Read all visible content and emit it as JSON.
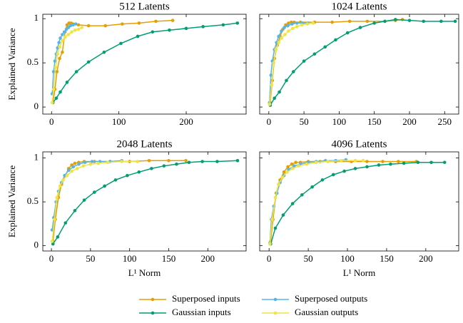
{
  "chart_data": [
    {
      "type": "line",
      "title": "512 Latents",
      "ylabel": "Explained Variance",
      "xlim": [
        -13,
        289
      ],
      "ylim": [
        -0.08,
        1.05
      ],
      "xticks": [
        0,
        100,
        200
      ],
      "yticks": [
        0,
        0.5,
        1
      ],
      "show_ytick_labels": true,
      "grid": false,
      "legend": "bottom",
      "series": [
        {
          "name": "Superposed inputs",
          "color": "#E69F00",
          "x": [
            2,
            5,
            8,
            12,
            16,
            20,
            23,
            26,
            29,
            32,
            40,
            55,
            80,
            105,
            130,
            155,
            180
          ],
          "values": [
            0.05,
            0.2,
            0.4,
            0.55,
            0.62,
            0.85,
            0.93,
            0.95,
            0.95,
            0.94,
            0.93,
            0.92,
            0.92,
            0.94,
            0.95,
            0.97,
            0.98
          ]
        },
        {
          "name": "Gaussian inputs",
          "color": "#009E73",
          "x": [
            2,
            7,
            13,
            23,
            37,
            55,
            78,
            103,
            128,
            150,
            175,
            200,
            225,
            255,
            276
          ],
          "values": [
            0.05,
            0.1,
            0.17,
            0.28,
            0.4,
            0.51,
            0.62,
            0.72,
            0.8,
            0.85,
            0.87,
            0.89,
            0.91,
            0.93,
            0.95
          ]
        },
        {
          "name": "Superposed outputs",
          "color": "#56B4E9",
          "x": [
            1,
            3,
            5,
            7,
            9,
            11,
            13,
            16,
            19,
            22,
            25,
            28,
            32,
            36
          ],
          "values": [
            0.15,
            0.4,
            0.52,
            0.6,
            0.67,
            0.73,
            0.78,
            0.82,
            0.85,
            0.88,
            0.9,
            0.92,
            0.93,
            0.94
          ]
        },
        {
          "name": "Gaussian outputs",
          "color": "#F0E442",
          "x": [
            1,
            3,
            6,
            9,
            12,
            16,
            20,
            25,
            30,
            35,
            40,
            45
          ],
          "values": [
            0.05,
            0.2,
            0.45,
            0.6,
            0.68,
            0.75,
            0.79,
            0.82,
            0.85,
            0.87,
            0.88,
            0.9
          ]
        }
      ]
    },
    {
      "type": "line",
      "title": "1024 Latents",
      "xlim": [
        -13,
        270
      ],
      "ylim": [
        -0.08,
        1.05
      ],
      "xticks": [
        0,
        50,
        100,
        150,
        200,
        250
      ],
      "yticks": [
        0,
        0.5,
        1
      ],
      "show_ytick_labels": false,
      "grid": false,
      "series": [
        {
          "color": "#E69F00",
          "x": [
            2,
            5,
            8,
            12,
            16,
            20,
            24,
            28,
            32,
            36,
            45,
            65,
            90,
            115,
            140,
            165,
            180,
            190
          ],
          "values": [
            0.05,
            0.3,
            0.55,
            0.7,
            0.8,
            0.88,
            0.93,
            0.95,
            0.96,
            0.96,
            0.96,
            0.96,
            0.96,
            0.97,
            0.97,
            0.97,
            0.98,
            0.99
          ]
        },
        {
          "color": "#009E73",
          "x": [
            2,
            8,
            15,
            25,
            35,
            50,
            65,
            80,
            95,
            112,
            130,
            150,
            165,
            180,
            200,
            220,
            245,
            265
          ],
          "values": [
            0.02,
            0.1,
            0.17,
            0.3,
            0.4,
            0.52,
            0.6,
            0.68,
            0.76,
            0.84,
            0.9,
            0.95,
            0.97,
            0.99,
            0.98,
            0.97,
            0.97,
            0.97
          ]
        },
        {
          "color": "#56B4E9",
          "x": [
            1,
            3,
            5,
            8,
            11,
            14,
            18,
            22,
            27,
            33,
            40,
            48,
            56
          ],
          "values": [
            0.05,
            0.36,
            0.52,
            0.65,
            0.73,
            0.8,
            0.86,
            0.9,
            0.92,
            0.94,
            0.95,
            0.95,
            0.95
          ]
        },
        {
          "color": "#F0E442",
          "x": [
            1,
            4,
            7,
            10,
            14,
            18,
            23,
            28,
            34,
            40,
            47,
            55,
            63
          ],
          "values": [
            0.03,
            0.25,
            0.5,
            0.65,
            0.73,
            0.78,
            0.82,
            0.86,
            0.89,
            0.91,
            0.93,
            0.94,
            0.95
          ]
        }
      ]
    },
    {
      "type": "line",
      "title": "2048 Latents",
      "ylabel": "Explained Variance",
      "xlabel": "L¹ Norm",
      "xlim": [
        -11,
        249
      ],
      "ylim": [
        -0.06,
        1.07
      ],
      "xticks": [
        0,
        50,
        100,
        150,
        200
      ],
      "yticks": [
        0,
        0.5,
        1
      ],
      "show_ytick_labels": true,
      "grid": false,
      "series": [
        {
          "color": "#E69F00",
          "x": [
            2,
            5,
            9,
            13,
            18,
            22,
            26,
            30,
            35,
            42,
            55,
            75,
            100,
            125,
            150,
            172
          ],
          "values": [
            0.05,
            0.3,
            0.55,
            0.7,
            0.8,
            0.88,
            0.92,
            0.94,
            0.95,
            0.96,
            0.96,
            0.96,
            0.96,
            0.97,
            0.97,
            0.97
          ]
        },
        {
          "color": "#009E73",
          "x": [
            2,
            8,
            18,
            30,
            42,
            55,
            68,
            82,
            97,
            112,
            128,
            144,
            160,
            176,
            193,
            212,
            238
          ],
          "values": [
            0.02,
            0.1,
            0.26,
            0.4,
            0.52,
            0.61,
            0.68,
            0.75,
            0.8,
            0.84,
            0.88,
            0.91,
            0.93,
            0.95,
            0.96,
            0.96,
            0.97
          ]
        },
        {
          "color": "#56B4E9",
          "x": [
            1,
            3,
            6,
            9,
            13,
            17,
            22,
            28,
            35,
            43,
            52,
            62,
            75,
            90
          ],
          "values": [
            0.18,
            0.32,
            0.5,
            0.62,
            0.72,
            0.8,
            0.86,
            0.9,
            0.93,
            0.95,
            0.96,
            0.96,
            0.96,
            0.97
          ]
        },
        {
          "color": "#F0E442",
          "x": [
            1,
            4,
            7,
            11,
            15,
            20,
            26,
            33,
            41,
            50,
            60,
            72,
            90,
            110
          ],
          "values": [
            0.05,
            0.3,
            0.55,
            0.68,
            0.75,
            0.8,
            0.85,
            0.88,
            0.91,
            0.93,
            0.94,
            0.95,
            0.96,
            0.96
          ]
        }
      ]
    },
    {
      "type": "line",
      "title": "4096 Latents",
      "xlabel": "L¹ Norm",
      "xlim": [
        -12,
        242
      ],
      "ylim": [
        -0.06,
        1.07
      ],
      "xticks": [
        0,
        50,
        100,
        150,
        200
      ],
      "yticks": [
        0,
        0.5,
        1
      ],
      "show_ytick_labels": false,
      "grid": false,
      "series": [
        {
          "color": "#E69F00",
          "x": [
            2,
            5,
            9,
            14,
            19,
            24,
            29,
            34,
            40,
            50,
            65,
            85,
            105,
            125,
            145,
            165,
            188
          ],
          "values": [
            0.05,
            0.3,
            0.6,
            0.75,
            0.84,
            0.9,
            0.93,
            0.95,
            0.95,
            0.96,
            0.96,
            0.96,
            0.96,
            0.96,
            0.96,
            0.96,
            0.96
          ]
        },
        {
          "color": "#009E73",
          "x": [
            2,
            8,
            18,
            30,
            42,
            55,
            68,
            82,
            96,
            110,
            125,
            140,
            155,
            172,
            190,
            207,
            224
          ],
          "values": [
            0.02,
            0.2,
            0.35,
            0.48,
            0.58,
            0.67,
            0.75,
            0.81,
            0.85,
            0.88,
            0.9,
            0.92,
            0.93,
            0.94,
            0.95,
            0.95,
            0.95
          ]
        },
        {
          "color": "#56B4E9",
          "x": [
            1,
            3,
            6,
            10,
            14,
            19,
            25,
            32,
            40,
            50,
            60,
            72,
            85,
            98
          ],
          "values": [
            0.03,
            0.3,
            0.45,
            0.6,
            0.72,
            0.8,
            0.87,
            0.91,
            0.93,
            0.95,
            0.96,
            0.97,
            0.97,
            0.98
          ]
        },
        {
          "color": "#F0E442",
          "x": [
            1,
            4,
            8,
            12,
            17,
            23,
            30,
            38,
            48,
            60,
            75,
            92,
            110,
            120
          ],
          "values": [
            0.02,
            0.3,
            0.55,
            0.7,
            0.78,
            0.84,
            0.88,
            0.91,
            0.93,
            0.95,
            0.96,
            0.97,
            0.97,
            0.97
          ]
        }
      ]
    }
  ]
}
